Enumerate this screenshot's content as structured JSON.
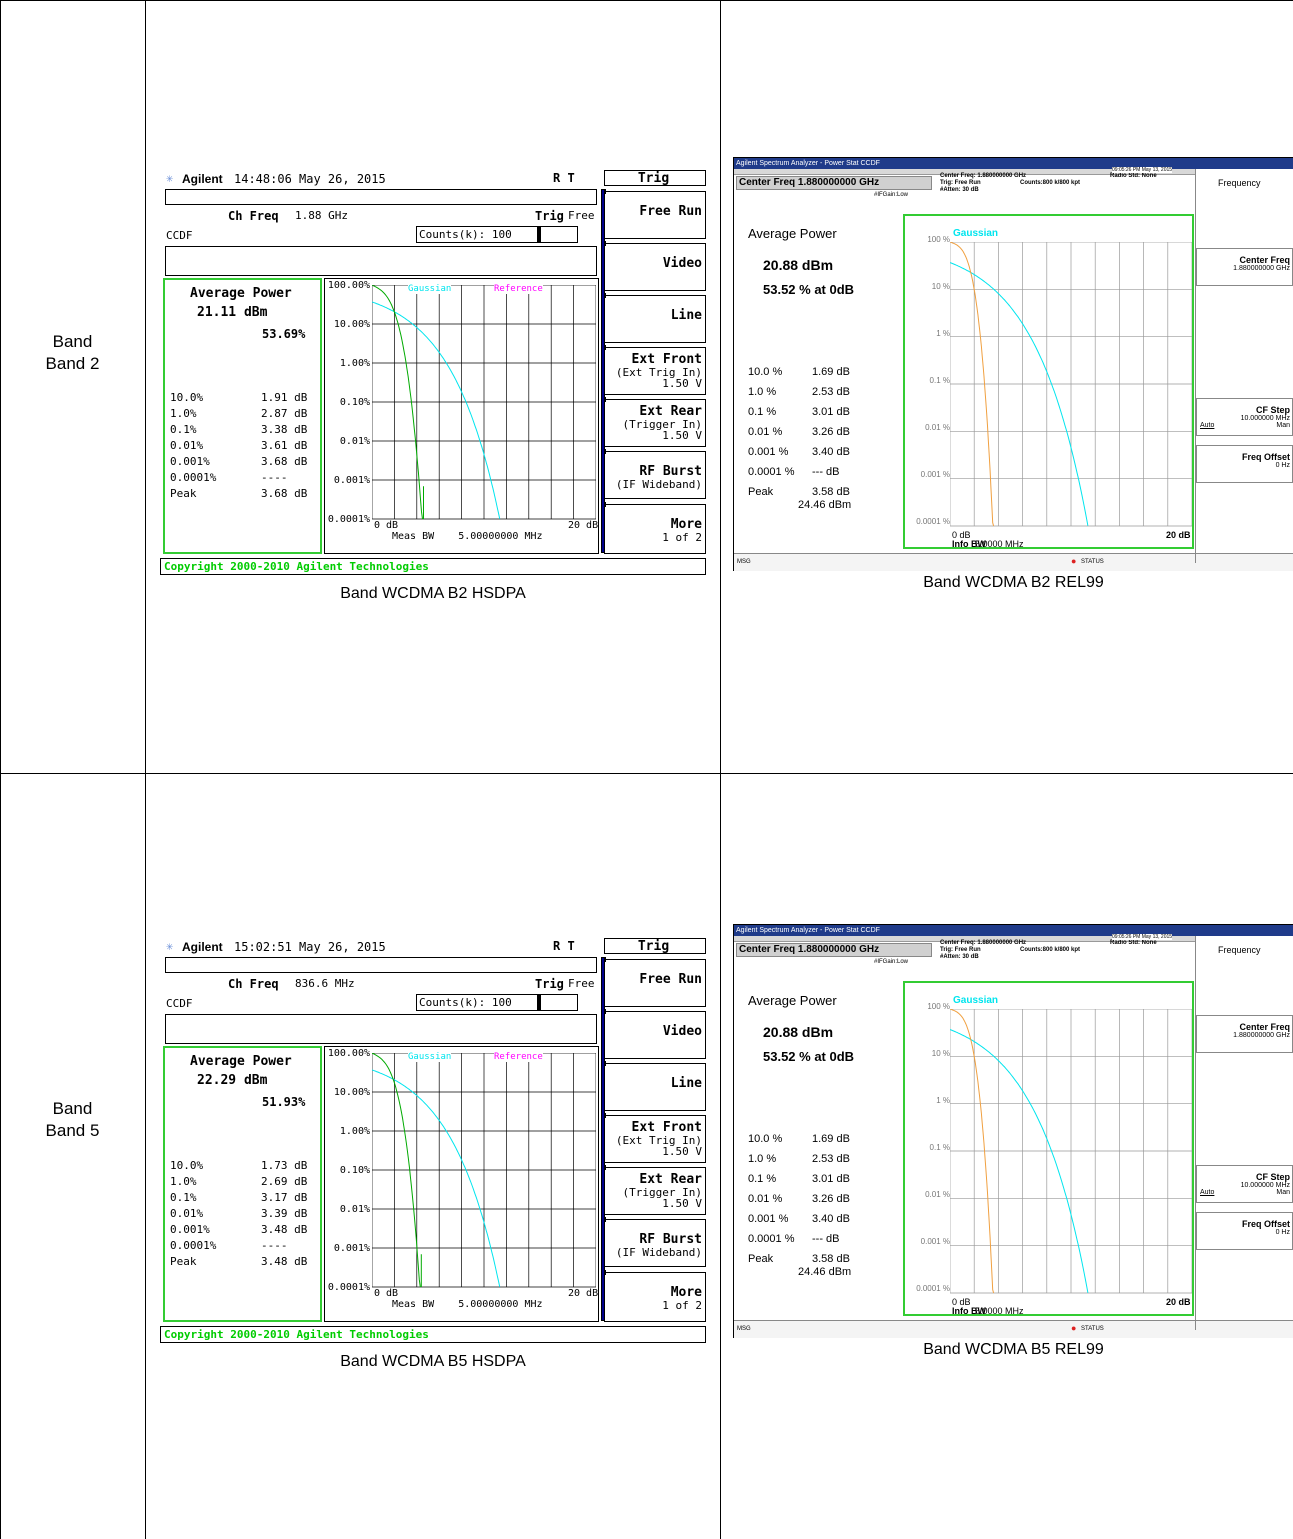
{
  "rows": [
    {
      "label_line1": "Band",
      "label_line2": "Band 2",
      "hsdpa": {
        "caption": "Band WCDMA B2 HSDPA",
        "brand": "Agilent",
        "datetime": "14:48:06  May 26, 2015",
        "indicators": "R  T",
        "ch_freq_label": "Ch Freq",
        "ch_freq": "1.88 GHz",
        "trig_label": "Trig",
        "trig_value": "Free",
        "mode": "CCDF",
        "counts": "Counts(k): 100",
        "avg_power_label": "Average Power",
        "avg_power": "21.11 dBm",
        "avg_pct": "53.69%",
        "stats": [
          {
            "p": "10.0%",
            "v": "1.91 dB"
          },
          {
            "p": "1.0%",
            "v": "2.87 dB"
          },
          {
            "p": "0.1%",
            "v": "3.38 dB"
          },
          {
            "p": "0.01%",
            "v": "3.61 dB"
          },
          {
            "p": "0.001%",
            "v": "3.68 dB"
          },
          {
            "p": "0.0001%",
            "v": "----"
          },
          {
            "p": "Peak",
            "v": "3.68 dB"
          }
        ],
        "y_ticks": [
          "100.00%",
          "10.00%",
          "1.00%",
          "0.10%",
          "0.01%",
          "0.001%",
          "0.0001%"
        ],
        "x_start": "0 dB",
        "x_end": "20 dB",
        "meas_bw": "Meas BW    5.00000000 MHz",
        "legend_gaussian": "Gaussian",
        "legend_reference": "Reference",
        "measured_end_db": 4.6,
        "copyright": "Copyright 2000-2010 Agilent Technologies",
        "softkeys": [
          {
            "k1": "Trig",
            "k2": ""
          },
          {
            "k1": "Free Run",
            "k2": ""
          },
          {
            "k1": "Video",
            "k2": ""
          },
          {
            "k1": "Line",
            "k2": ""
          },
          {
            "k1": "Ext Front",
            "k2": "(Ext Trig In)",
            "k3": "1.50 V"
          },
          {
            "k1": "Ext Rear",
            "k2": "(Trigger In)",
            "k3": "1.50 V"
          },
          {
            "k1": "RF Burst",
            "k2": "(IF Wideband)"
          },
          {
            "k1": "More",
            "k2": "1 of 2"
          }
        ]
      },
      "rel99": {
        "caption": "Band WCDMA B2 REL99",
        "title": "Agilent Spectrum Analyzer - Power Stat CCDF",
        "center_freq": "Center Freq 1.880000000 GHz",
        "info1": "Center Freq: 1.880000000 GHz",
        "info2": "Trig: Free Run",
        "info3": "#Atten: 30 dB",
        "counts": "Counts:800 k/800 kpt",
        "radio_std": "Radio Std: None",
        "gain": "#IFGain:Low",
        "timestamp": "09:05:26 PM May 13, 2015",
        "avg_power_label": "Average Power",
        "avg_power": "20.88 dBm",
        "avg_pct": "53.52 % at 0dB",
        "stats": [
          {
            "p": "10.0 %",
            "v": "1.69 dB"
          },
          {
            "p": "1.0 %",
            "v": "2.53 dB"
          },
          {
            "p": "0.1 %",
            "v": "3.01 dB"
          },
          {
            "p": "0.01 %",
            "v": "3.26 dB"
          },
          {
            "p": "0.001 %",
            "v": "3.40 dB"
          },
          {
            "p": "0.0001 %",
            "v": "--- dB"
          },
          {
            "p": "Peak",
            "v": "3.58 dB"
          }
        ],
        "peak_dbm": "24.46 dBm",
        "legend": "Gaussian",
        "y_ticks": [
          "100 %",
          "10 %",
          "1 %",
          "0.1 %",
          "0.01 %",
          "0.001 %",
          "0.0001 %"
        ],
        "x_start": "0 dB",
        "x_end": "20 dB",
        "info_bw_label": "Info BW",
        "info_bw": "5.0000 MHz",
        "msg": "MSG",
        "status": "STATUS",
        "side_title": "Frequency",
        "softkeys": [
          {
            "k1": "Center Freq",
            "k2": "1.880000000 GHz"
          },
          {
            "k1": "CF Step",
            "k2": "10.000000 MHz",
            "k3a": "Auto",
            "k3b": "Man"
          },
          {
            "k1": "Freq Offset",
            "k2": "0 Hz"
          }
        ]
      }
    },
    {
      "label_line1": "Band",
      "label_line2": "Band 5",
      "hsdpa": {
        "caption": "Band WCDMA B5 HSDPA",
        "brand": "Agilent",
        "datetime": "15:02:51  May 26, 2015",
        "indicators": "R  T",
        "ch_freq_label": "Ch Freq",
        "ch_freq": "836.6 MHz",
        "trig_label": "Trig",
        "trig_value": "Free",
        "mode": "CCDF",
        "counts": "Counts(k): 100",
        "avg_power_label": "Average Power",
        "avg_power": "22.29 dBm",
        "avg_pct": "51.93%",
        "stats": [
          {
            "p": "10.0%",
            "v": "1.73 dB"
          },
          {
            "p": "1.0%",
            "v": "2.69 dB"
          },
          {
            "p": "0.1%",
            "v": "3.17 dB"
          },
          {
            "p": "0.01%",
            "v": "3.39 dB"
          },
          {
            "p": "0.001%",
            "v": "3.48 dB"
          },
          {
            "p": "0.0001%",
            "v": "----"
          },
          {
            "p": "Peak",
            "v": "3.48 dB"
          }
        ],
        "y_ticks": [
          "100.00%",
          "10.00%",
          "1.00%",
          "0.10%",
          "0.01%",
          "0.001%",
          "0.0001%"
        ],
        "x_start": "0 dB",
        "x_end": "20 dB",
        "meas_bw": "Meas BW    5.00000000 MHz",
        "legend_gaussian": "Gaussian",
        "legend_reference": "Reference",
        "measured_end_db": 4.4,
        "copyright": "Copyright 2000-2010 Agilent Technologies",
        "softkeys": [
          {
            "k1": "Trig",
            "k2": ""
          },
          {
            "k1": "Free Run",
            "k2": ""
          },
          {
            "k1": "Video",
            "k2": ""
          },
          {
            "k1": "Line",
            "k2": ""
          },
          {
            "k1": "Ext Front",
            "k2": "(Ext Trig In)",
            "k3": "1.50 V"
          },
          {
            "k1": "Ext Rear",
            "k2": "(Trigger In)",
            "k3": "1.50 V"
          },
          {
            "k1": "RF Burst",
            "k2": "(IF Wideband)"
          },
          {
            "k1": "More",
            "k2": "1 of 2"
          }
        ]
      },
      "rel99": {
        "caption": "Band WCDMA B5 REL99",
        "title": "Agilent Spectrum Analyzer - Power Stat CCDF",
        "center_freq": "Center Freq 1.880000000 GHz",
        "info1": "Center Freq: 1.880000000 GHz",
        "info2": "Trig: Free Run",
        "info3": "#Atten: 30 dB",
        "counts": "Counts:800 k/800 kpt",
        "radio_std": "Radio Std: None",
        "gain": "#IFGain:Low",
        "timestamp": "09:05:26 PM May 13, 2015",
        "avg_power_label": "Average Power",
        "avg_power": "20.88 dBm",
        "avg_pct": "53.52 % at 0dB",
        "stats": [
          {
            "p": "10.0 %",
            "v": "1.69 dB"
          },
          {
            "p": "1.0 %",
            "v": "2.53 dB"
          },
          {
            "p": "0.1 %",
            "v": "3.01 dB"
          },
          {
            "p": "0.01 %",
            "v": "3.26 dB"
          },
          {
            "p": "0.001 %",
            "v": "3.40 dB"
          },
          {
            "p": "0.0001 %",
            "v": "--- dB"
          },
          {
            "p": "Peak",
            "v": "3.58 dB"
          }
        ],
        "peak_dbm": "24.46 dBm",
        "legend": "Gaussian",
        "y_ticks": [
          "100 %",
          "10 %",
          "1 %",
          "0.1 %",
          "0.01 %",
          "0.001 %",
          "0.0001 %"
        ],
        "x_start": "0 dB",
        "x_end": "20 dB",
        "info_bw_label": "Info BW",
        "info_bw": "5.0000 MHz",
        "msg": "MSG",
        "status": "STATUS",
        "side_title": "Frequency",
        "softkeys": [
          {
            "k1": "Center Freq",
            "k2": "1.880000000 GHz"
          },
          {
            "k1": "CF Step",
            "k2": "10.000000 MHz",
            "k3a": "Auto",
            "k3b": "Man"
          },
          {
            "k1": "Freq Offset",
            "k2": "0 Hz"
          }
        ]
      }
    }
  ],
  "colors": {
    "green_border": "#33cc33",
    "gaussian_cyan": "#00e5ee",
    "reference_magenta": "#ff00ff",
    "measured_green": "#00aa00",
    "measured_orange": "#f0a040",
    "softkey_blue": "#00008b",
    "title_blue": "#1f3b8a"
  }
}
